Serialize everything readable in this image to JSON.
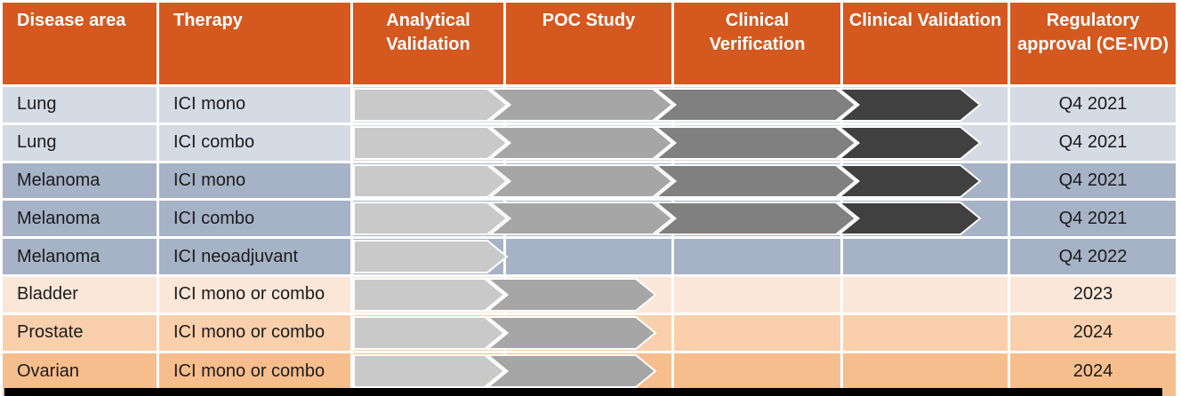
{
  "colors": {
    "header_bg": "#D5581F",
    "header_text": "#FFFFFF",
    "body_text": "#1B1B1B",
    "arrow_outline": "#FFFFFF",
    "bottom_bar": "#000000",
    "row_band_lung": "#D5DBE4",
    "row_band_melanoma": "#A6B2C5",
    "row_band_bladder": "#FBE7D8",
    "row_band_prostate": "#FACFAB",
    "row_band_ovarian": "#F6BD8D"
  },
  "stage_colors": [
    "#C9C9C9",
    "#A6A6A6",
    "#808080",
    "#404040"
  ],
  "table": {
    "columns": [
      {
        "id": "disease",
        "label": "Disease area"
      },
      {
        "id": "therapy",
        "label": "Therapy"
      },
      {
        "id": "analytical",
        "label": "Analytical Validation"
      },
      {
        "id": "poc",
        "label": "POC Study"
      },
      {
        "id": "verification",
        "label": "Clinical Verification"
      },
      {
        "id": "validation",
        "label": "Clinical Validation"
      },
      {
        "id": "approval",
        "label": "Regulatory approval (CE-IVD)"
      }
    ],
    "rows": [
      {
        "disease": "Lung",
        "therapy": "ICI mono",
        "stages_reached": [
          "Analytical Validation",
          "POC Study",
          "Clinical Verification",
          "Clinical Validation"
        ],
        "last_stage_partial": false,
        "approval": "Q4 2021",
        "row_color": "#D5DBE4"
      },
      {
        "disease": "Lung",
        "therapy": "ICI combo",
        "stages_reached": [
          "Analytical Validation",
          "POC Study",
          "Clinical Verification",
          "Clinical Validation"
        ],
        "last_stage_partial": false,
        "approval": "Q4 2021",
        "row_color": "#D5DBE4"
      },
      {
        "disease": "Melanoma",
        "therapy": "ICI mono",
        "stages_reached": [
          "Analytical Validation",
          "POC Study",
          "Clinical Verification",
          "Clinical Validation"
        ],
        "last_stage_partial": false,
        "approval": "Q4 2021",
        "row_color": "#A6B2C5"
      },
      {
        "disease": "Melanoma",
        "therapy": "ICI combo",
        "stages_reached": [
          "Analytical Validation",
          "POC Study",
          "Clinical Verification",
          "Clinical Validation"
        ],
        "last_stage_partial": false,
        "approval": "Q4 2021",
        "row_color": "#A6B2C5"
      },
      {
        "disease": "Melanoma",
        "therapy": "ICI neoadjuvant",
        "stages_reached": [
          "Analytical Validation"
        ],
        "last_stage_partial": false,
        "approval": "Q4 2022",
        "row_color": "#A6B2C5"
      },
      {
        "disease": "Bladder",
        "therapy": "ICI mono or combo",
        "stages_reached": [
          "Analytical Validation",
          "POC Study"
        ],
        "last_stage_partial": true,
        "approval": "2023",
        "row_color": "#FBE7D8"
      },
      {
        "disease": "Prostate",
        "therapy": "ICI mono or combo",
        "stages_reached": [
          "Analytical Validation",
          "POC Study"
        ],
        "last_stage_partial": true,
        "approval": "2024",
        "row_color": "#FACFAB"
      },
      {
        "disease": "Ovarian",
        "therapy": "ICI mono or combo",
        "stages_reached": [
          "Analytical Validation",
          "POC Study"
        ],
        "last_stage_partial": true,
        "approval": "2024",
        "row_color": "#F6BD8D"
      }
    ]
  },
  "chart_data": {
    "type": "table",
    "columns": [
      "Disease area",
      "Therapy",
      "Analytical Validation",
      "POC Study",
      "Clinical Verification",
      "Clinical Validation",
      "Regulatory approval (CE-IVD)"
    ],
    "rows": [
      {
        "disease_area": "Lung",
        "therapy": "ICI mono",
        "analytical_validation": "reached",
        "poc_study": "reached",
        "clinical_verification": "reached",
        "clinical_validation": "reached",
        "regulatory_approval": "Q4 2021"
      },
      {
        "disease_area": "Lung",
        "therapy": "ICI combo",
        "analytical_validation": "reached",
        "poc_study": "reached",
        "clinical_verification": "reached",
        "clinical_validation": "reached",
        "regulatory_approval": "Q4 2021"
      },
      {
        "disease_area": "Melanoma",
        "therapy": "ICI mono",
        "analytical_validation": "reached",
        "poc_study": "reached",
        "clinical_verification": "reached",
        "clinical_validation": "reached",
        "regulatory_approval": "Q4 2021"
      },
      {
        "disease_area": "Melanoma",
        "therapy": "ICI combo",
        "analytical_validation": "reached",
        "poc_study": "reached",
        "clinical_verification": "reached",
        "clinical_validation": "reached",
        "regulatory_approval": "Q4 2021"
      },
      {
        "disease_area": "Melanoma",
        "therapy": "ICI neoadjuvant",
        "analytical_validation": "reached",
        "poc_study": "",
        "clinical_verification": "",
        "clinical_validation": "",
        "regulatory_approval": "Q4 2022"
      },
      {
        "disease_area": "Bladder",
        "therapy": "ICI mono or combo",
        "analytical_validation": "reached",
        "poc_study": "in progress",
        "clinical_verification": "",
        "clinical_validation": "",
        "regulatory_approval": "2023"
      },
      {
        "disease_area": "Prostate",
        "therapy": "ICI mono or combo",
        "analytical_validation": "reached",
        "poc_study": "in progress",
        "clinical_verification": "",
        "clinical_validation": "",
        "regulatory_approval": "2024"
      },
      {
        "disease_area": "Ovarian",
        "therapy": "ICI mono or combo",
        "analytical_validation": "reached",
        "poc_study": "in progress",
        "clinical_verification": "",
        "clinical_validation": "",
        "regulatory_approval": "2024"
      }
    ],
    "legend_position": "none",
    "grid": "white cell separators",
    "notes": "Gray chevron arrows per row darken by stage; arrow length shows pipeline progress."
  }
}
